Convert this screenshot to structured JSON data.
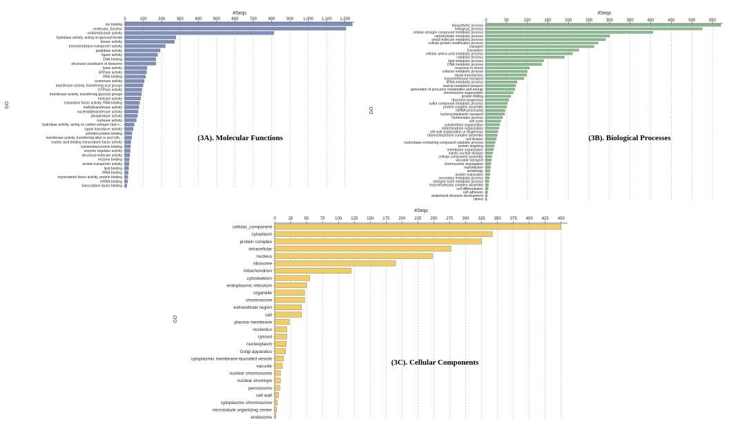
{
  "chart_data": [
    {
      "type": "bar",
      "orientation": "horizontal",
      "caption": "(3A). Molecular Functions",
      "xlabel": "#Seqs",
      "ylabel": "GO",
      "xlim": [
        0,
        1250
      ],
      "xticks": [
        0,
        100,
        200,
        300,
        400,
        500,
        600,
        700,
        800,
        900,
        1000,
        1100,
        1200
      ],
      "xtick_labels": [
        "0",
        "100",
        "200",
        "300",
        "400",
        "500",
        "600",
        "700",
        "800",
        "900",
        "1,000",
        "1,100",
        "1,200"
      ],
      "grid": true,
      "bar_color": "#7f8fc0",
      "categories": [
        "ion binding",
        "molecular_function",
        "oxidoreductase activity",
        "hydrolase activity, acting on glycosyl bonds",
        "kinase activity",
        "transmembrane transporter activity",
        "peptidase activity",
        "ligase activity",
        "DNA binding",
        "structural constituent of ribosome",
        "lyase activity",
        "ATPase activity",
        "RNA binding",
        "isomerase activity",
        "transferase activity, transferring acyl groups",
        "GTPase activity",
        "transferase activity, transferring glycosyl groups",
        "helicase activity",
        "translation factor activity, RNA binding",
        "methyltransferase activity",
        "nucleotidyltransferase activity",
        "phosphatase activity",
        "nuclease activity",
        "hydrolase activity, acting on carbon-nitrogen (but n...",
        "signal transducer activity",
        "unfolded protein binding",
        "transferase activity, transferring alkyl or aryl (oth...",
        "nucleic acid binding transcription factor activity",
        "cytoskeletal protein binding",
        "enzyme regulator activity",
        "structural molecule activity",
        "enzyme binding",
        "protein transporter activity",
        "lipid binding",
        "rRNA binding",
        "transcription factor activity, protein binding",
        "mRNA binding",
        "transcription factor binding"
      ],
      "values": [
        1240,
        1205,
        812,
        278,
        270,
        220,
        192,
        178,
        168,
        168,
        120,
        118,
        112,
        105,
        98,
        92,
        90,
        86,
        80,
        76,
        72,
        68,
        62,
        50,
        44,
        38,
        36,
        32,
        30,
        28,
        26,
        24,
        22,
        20,
        18,
        16,
        14,
        10
      ]
    },
    {
      "type": "bar",
      "orientation": "horizontal",
      "caption": "(3B). Biological Processes",
      "xlabel": "#Seqs",
      "ylabel": "GO",
      "xlim": [
        0,
        575
      ],
      "xticks": [
        0,
        50,
        100,
        150,
        200,
        250,
        300,
        350,
        400,
        450,
        500,
        550
      ],
      "xtick_labels": [
        "0",
        "50",
        "100",
        "150",
        "200",
        "250",
        "300",
        "350",
        "400",
        "450",
        "500",
        "550"
      ],
      "grid": true,
      "bar_color": "#86c08c",
      "categories": [
        "biosynthetic process",
        "biological_process",
        "cellular nitrogen compound metabolic process",
        "carbohydrate metabolic process",
        "small molecule metabolic process",
        "cellular protein modification process",
        "transport",
        "translation",
        "cellular amino acid metabolic process",
        "catabolic process",
        "lipid metabolic process",
        "DNA metabolic process",
        "response to stress",
        "cofactor metabolic process",
        "signal transduction",
        "transmembrane transport",
        "tRNA metabolic process",
        "vesicle-mediated transport",
        "generation of precursor metabolites and energy",
        "chromosome organization",
        "protein folding",
        "ribosome biogenesis",
        "sulfur compound metabolic process",
        "protein complex assembly",
        "mRNA processing",
        "nucleocytoplasmic transport",
        "homeostatic process",
        "cell cycle",
        "cytoskeleton organization",
        "mitochondrion organization",
        "cell wall organization or biogenesis",
        "ribonucleoprotein complex assembly",
        "cell division",
        "nucleobase-containing compound catabolic process",
        "protein targeting",
        "membrane organization",
        "mitotic nuclear division",
        "cellular component assembly",
        "vacuolar transport",
        "chromosome segregation",
        "reproduction",
        "autophagy",
        "protein maturation",
        "secondary metabolic process",
        "nitrogen cycle metabolic process",
        "macromolecular complex assembly",
        "cell differentiation",
        "cell adhesion",
        "anatomical structure development",
        "others"
      ],
      "values": [
        570,
        525,
        405,
        300,
        290,
        272,
        262,
        225,
        210,
        190,
        140,
        135,
        105,
        100,
        98,
        92,
        75,
        72,
        70,
        66,
        60,
        55,
        52,
        50,
        46,
        45,
        40,
        36,
        33,
        31,
        29,
        27,
        25,
        22,
        20,
        18,
        16,
        14,
        13,
        12,
        11,
        10,
        9,
        8,
        7,
        6,
        5,
        4,
        3,
        2
      ]
    },
    {
      "type": "bar",
      "orientation": "horizontal",
      "caption": "(3C). Cellular Components",
      "xlabel": "#Seqs",
      "ylabel": "GO",
      "xlim": [
        0,
        460
      ],
      "xticks": [
        0,
        25,
        50,
        75,
        100,
        125,
        150,
        175,
        200,
        225,
        250,
        275,
        300,
        325,
        350,
        375,
        400,
        425,
        450
      ],
      "xtick_labels": [
        "0",
        "25",
        "50",
        "75",
        "100",
        "125",
        "150",
        "175",
        "200",
        "225",
        "250",
        "275",
        "300",
        "325",
        "350",
        "375",
        "400",
        "425",
        "450"
      ],
      "grid": true,
      "bar_color": "#f0ce65",
      "categories": [
        "cellular_component",
        "cytoplasm",
        "protein complex",
        "intracellular",
        "nucleus",
        "ribosome",
        "mitochondrion",
        "cytoskeleton",
        "endoplasmic reticulum",
        "organelle",
        "chromosome",
        "extracellular region",
        "cell",
        "plasma membrane",
        "nucleolus",
        "cytosol",
        "nucleoplasm",
        "Golgi apparatus",
        "cytoplasmic membrane-bounded vesicle",
        "vacuole",
        "nuclear chromosome",
        "nuclear envelope",
        "peroxisome",
        "cell wall",
        "cytoplasmic chromosome",
        "microtubule organizing center",
        "endosome"
      ],
      "values": [
        450,
        342,
        325,
        277,
        248,
        190,
        120,
        55,
        50,
        47,
        47,
        42,
        42,
        23,
        19,
        19,
        18,
        17,
        14,
        12,
        9,
        9,
        8,
        6,
        4,
        3,
        2
      ]
    }
  ]
}
